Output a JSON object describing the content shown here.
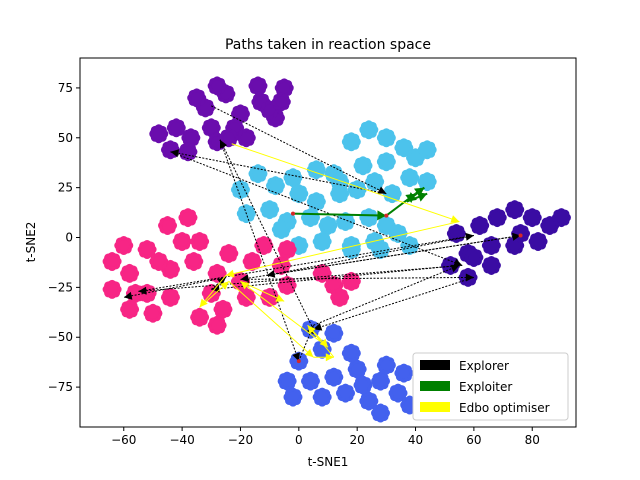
{
  "chart_data": {
    "type": "scatter",
    "title": "Paths taken in reaction space",
    "xlabel": "t-SNE1",
    "ylabel": "t-SNE2",
    "xlim": [
      -75,
      95
    ],
    "ylim": [
      -95,
      90
    ],
    "xticks": [
      -60,
      -40,
      -20,
      0,
      20,
      40,
      60,
      80
    ],
    "yticks": [
      -75,
      -50,
      -25,
      0,
      25,
      50,
      75
    ],
    "grid": false,
    "legend_position": "lower-right",
    "clusters": [
      {
        "color": "#6a0dad",
        "blobs": [
          [
            -25,
            72
          ],
          [
            -32,
            65
          ],
          [
            -20,
            62
          ],
          [
            -13,
            68
          ],
          [
            -5,
            75
          ],
          [
            -8,
            60
          ],
          [
            -22,
            55
          ],
          [
            -30,
            55
          ],
          [
            -37,
            50
          ],
          [
            -48,
            52
          ],
          [
            -44,
            44
          ],
          [
            -38,
            43
          ],
          [
            -28,
            48
          ],
          [
            -18,
            50
          ],
          [
            -10,
            64
          ],
          [
            -35,
            70
          ],
          [
            -28,
            76
          ],
          [
            -14,
            76
          ],
          [
            -6,
            68
          ],
          [
            -42,
            55
          ],
          [
            -24,
            50
          ]
        ]
      },
      {
        "color": "#4cc3ec",
        "blobs": [
          [
            18,
            48
          ],
          [
            24,
            54
          ],
          [
            30,
            50
          ],
          [
            36,
            45
          ],
          [
            40,
            40
          ],
          [
            44,
            44
          ],
          [
            30,
            38
          ],
          [
            22,
            36
          ],
          [
            26,
            28
          ],
          [
            20,
            24
          ],
          [
            32,
            22
          ],
          [
            38,
            30
          ],
          [
            44,
            28
          ],
          [
            14,
            22
          ],
          [
            6,
            18
          ],
          [
            -2,
            30
          ],
          [
            6,
            34
          ],
          [
            12,
            32
          ],
          [
            0,
            22
          ],
          [
            -8,
            26
          ],
          [
            -14,
            32
          ],
          [
            -20,
            24
          ],
          [
            -18,
            12
          ],
          [
            -10,
            14
          ],
          [
            -4,
            8
          ],
          [
            4,
            10
          ],
          [
            10,
            6
          ],
          [
            16,
            8
          ],
          [
            24,
            10
          ],
          [
            30,
            6
          ],
          [
            26,
            -2
          ],
          [
            18,
            -6
          ],
          [
            8,
            -2
          ],
          [
            0,
            -4
          ],
          [
            -6,
            4
          ],
          [
            18,
            -4
          ],
          [
            38,
            -4
          ],
          [
            28,
            -6
          ],
          [
            34,
            2
          ],
          [
            14,
            28
          ]
        ]
      },
      {
        "color": "#3a0ca3",
        "blobs": [
          [
            68,
            10
          ],
          [
            74,
            14
          ],
          [
            80,
            10
          ],
          [
            86,
            6
          ],
          [
            90,
            10
          ],
          [
            82,
            -2
          ],
          [
            74,
            -4
          ],
          [
            66,
            -4
          ],
          [
            58,
            -8
          ],
          [
            52,
            -14
          ],
          [
            58,
            -20
          ],
          [
            66,
            -14
          ],
          [
            54,
            2
          ],
          [
            62,
            6
          ],
          [
            60,
            -10
          ],
          [
            76,
            2
          ]
        ]
      },
      {
        "color": "#f72585",
        "blobs": [
          [
            -45,
            6
          ],
          [
            -38,
            10
          ],
          [
            -40,
            -2
          ],
          [
            -52,
            -6
          ],
          [
            -60,
            -4
          ],
          [
            -64,
            -12
          ],
          [
            -58,
            -18
          ],
          [
            -52,
            -28
          ],
          [
            -44,
            -30
          ],
          [
            -50,
            -38
          ],
          [
            -58,
            -36
          ],
          [
            -64,
            -26
          ],
          [
            -44,
            -16
          ],
          [
            -36,
            -12
          ],
          [
            -28,
            -18
          ],
          [
            -24,
            -8
          ],
          [
            -16,
            -12
          ],
          [
            -12,
            -4
          ],
          [
            -6,
            -14
          ],
          [
            -4,
            -24
          ],
          [
            -10,
            -30
          ],
          [
            -18,
            -30
          ],
          [
            -26,
            -36
          ],
          [
            -34,
            -40
          ],
          [
            -28,
            -44
          ],
          [
            -20,
            -22
          ],
          [
            8,
            -18
          ],
          [
            12,
            -24
          ],
          [
            18,
            -22
          ],
          [
            14,
            -30
          ],
          [
            -30,
            -28
          ],
          [
            -4,
            -6
          ],
          [
            -48,
            -12
          ],
          [
            -56,
            -28
          ],
          [
            -34,
            -2
          ]
        ]
      },
      {
        "color": "#4361ee",
        "blobs": [
          [
            4,
            -46
          ],
          [
            12,
            -48
          ],
          [
            8,
            -56
          ],
          [
            0,
            -62
          ],
          [
            -4,
            -72
          ],
          [
            4,
            -72
          ],
          [
            12,
            -70
          ],
          [
            20,
            -66
          ],
          [
            28,
            -72
          ],
          [
            34,
            -78
          ],
          [
            24,
            -82
          ],
          [
            16,
            -78
          ],
          [
            8,
            -80
          ],
          [
            -2,
            -80
          ],
          [
            30,
            -64
          ],
          [
            18,
            -58
          ],
          [
            36,
            -68
          ],
          [
            38,
            -84
          ],
          [
            28,
            -88
          ],
          [
            22,
            -74
          ]
        ]
      }
    ],
    "series": [
      {
        "name": "Explorer",
        "color": "#000000",
        "points": [
          [
            -30,
            66
          ],
          [
            30,
            22
          ],
          [
            -44,
            43
          ],
          [
            56,
            -14
          ],
          [
            -55,
            -27
          ],
          [
            60,
            1
          ],
          [
            -11,
            -19
          ],
          [
            76,
            1
          ],
          [
            -20,
            -21
          ],
          [
            60,
            -20
          ],
          [
            5,
            -46
          ],
          [
            -27,
            49
          ],
          [
            0,
            -62
          ],
          [
            5,
            -44
          ],
          [
            55,
            -14
          ],
          [
            -30,
            -26
          ],
          [
            -25,
            -20
          ],
          [
            -60,
            -30
          ]
        ]
      },
      {
        "name": "Exploiter",
        "color": "#008000",
        "points": [
          [
            -2,
            12
          ],
          [
            30,
            11
          ],
          [
            40,
            22
          ],
          [
            43,
            25
          ],
          [
            37,
            18
          ],
          [
            44,
            22
          ]
        ]
      },
      {
        "name": "Edbo optimiser",
        "color": "#ffff00",
        "points": [
          [
            -23,
            47
          ],
          [
            55,
            8
          ],
          [
            -25,
            -19
          ],
          [
            -34,
            -35
          ],
          [
            -24,
            -22
          ],
          [
            5,
            -60
          ],
          [
            12,
            -60
          ],
          [
            3,
            -44
          ],
          [
            10,
            -55
          ],
          [
            -20,
            -22
          ],
          [
            -5,
            -32
          ]
        ]
      }
    ]
  }
}
